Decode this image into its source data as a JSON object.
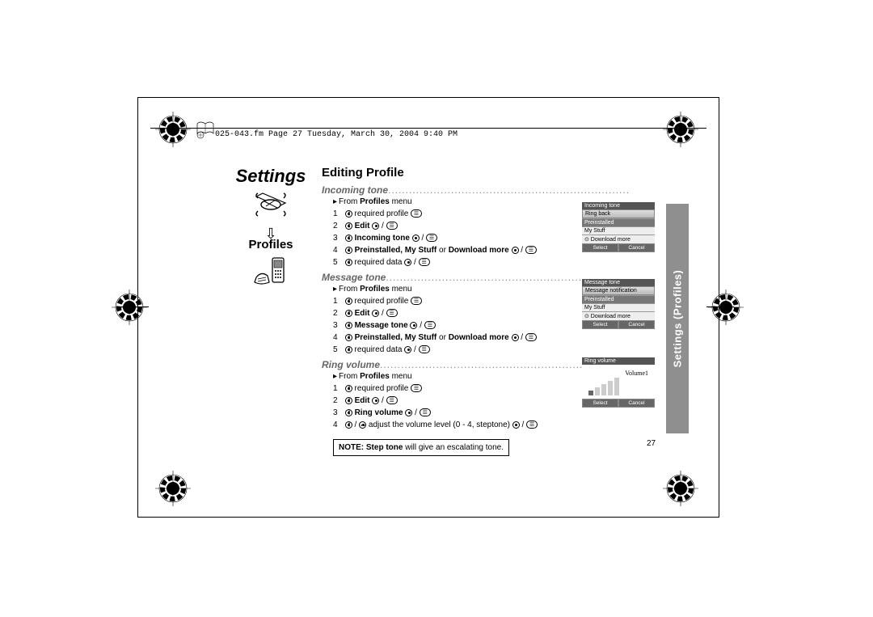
{
  "header": {
    "text": "025-043.fm  Page 27  Tuesday, March 30, 2004  9:40 PM"
  },
  "left": {
    "settings": "Settings",
    "profiles": "Profiles"
  },
  "main": {
    "title": "Editing Profile",
    "sections": [
      {
        "heading": "Incoming tone",
        "from_prefix": "From ",
        "from_bold": "Profiles",
        "from_suffix": " menu",
        "steps": [
          {
            "n": "1",
            "pre": "",
            "bold": "",
            "post": "required profile ",
            "icons": [
              "menu"
            ]
          },
          {
            "n": "2",
            "pre": "",
            "bold": "Edit",
            "post": " ",
            "icons": [
              "center",
              "slash",
              "menu"
            ]
          },
          {
            "n": "3",
            "pre": "",
            "bold": "Incoming tone",
            "post": " ",
            "icons": [
              "center",
              "slash",
              "menu"
            ]
          },
          {
            "n": "4",
            "pre": "",
            "bold": "Preinstalled, My Stuff",
            "post": " or ",
            "bold2": "Download more",
            "post2": " ",
            "icons": [
              "center",
              "slash",
              "menu"
            ]
          },
          {
            "n": "5",
            "pre": "",
            "bold": "",
            "post": "required data ",
            "icons": [
              "center",
              "slash",
              "menu"
            ]
          }
        ]
      },
      {
        "heading": "Message tone",
        "from_prefix": "From ",
        "from_bold": "Profiles",
        "from_suffix": " menu",
        "steps": [
          {
            "n": "1",
            "pre": "",
            "bold": "",
            "post": "required profile ",
            "icons": [
              "menu"
            ]
          },
          {
            "n": "2",
            "pre": "",
            "bold": "Edit",
            "post": " ",
            "icons": [
              "center",
              "slash",
              "menu"
            ]
          },
          {
            "n": "3",
            "pre": "",
            "bold": "Message tone",
            "post": " ",
            "icons": [
              "center",
              "slash",
              "menu"
            ]
          },
          {
            "n": "4",
            "pre": "",
            "bold": "Preinstalled, My Stuff",
            "post": " or ",
            "bold2": "Download more",
            "post2": " ",
            "icons": [
              "center",
              "slash",
              "menu"
            ]
          },
          {
            "n": "5",
            "pre": "",
            "bold": "",
            "post": "required data ",
            "icons": [
              "center",
              "slash",
              "menu"
            ]
          }
        ]
      },
      {
        "heading": "Ring volume",
        "from_prefix": "From ",
        "from_bold": "Profiles",
        "from_suffix": " menu",
        "steps": [
          {
            "n": "1",
            "pre": "",
            "bold": "",
            "post": "required profile ",
            "icons": [
              "menu"
            ]
          },
          {
            "n": "2",
            "pre": "",
            "bold": "Edit",
            "post": " ",
            "icons": [
              "center",
              "slash",
              "menu"
            ]
          },
          {
            "n": "3",
            "pre": "",
            "bold": "Ring volume",
            "post": " ",
            "icons": [
              "center",
              "slash",
              "menu"
            ]
          },
          {
            "n": "4",
            "pre": "",
            "bold": "",
            "post": " adjust the volume level (0 - 4, steptone) ",
            "leading": [
              "updown",
              "slash",
              "lr"
            ],
            "icons": [
              "center",
              "slash",
              "menu"
            ]
          }
        ]
      }
    ],
    "note_bold": "NOTE: Step tone",
    "note_rest": " will give an escalating tone."
  },
  "tab": "Settings  (Profiles)",
  "page_num": "27",
  "shots": {
    "s1": {
      "title": "Incoming tone",
      "hl": "Ring back",
      "r1": "Preinstalled",
      "r2": "My Stuff",
      "r3": "⊙ Download more",
      "sk1": "Select",
      "sk2": "Cancel"
    },
    "s2": {
      "title": "Message tone",
      "hl": "Message notification",
      "r1": "Preinstalled",
      "r2": "My Stuff",
      "r3": "⊙ Download more",
      "sk1": "Select",
      "sk2": "Cancel"
    },
    "s3": {
      "title": "Ring volume",
      "vol": "Volume1",
      "sk1": "Select",
      "sk2": "Cancel"
    }
  }
}
